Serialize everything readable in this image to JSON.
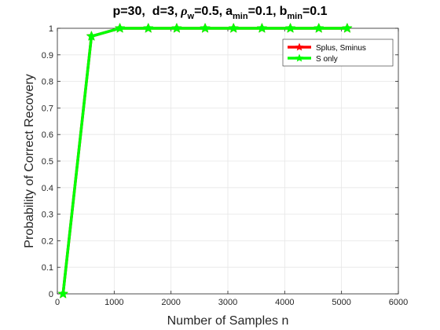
{
  "chart_data": {
    "type": "line",
    "title_parts": {
      "p": "p=30,",
      "d": "d=3,",
      "rho": "ρ",
      "rho_sub": "w",
      "rho_val": "=0.5,",
      "a": "a",
      "a_sub": "min",
      "a_val": "=0.1,",
      "b": "b",
      "b_sub": "min",
      "b_val": "=0.1"
    },
    "xlabel": "Number of Samples n",
    "ylabel": "Probability of Correct Recovery",
    "xlim": [
      0,
      6000
    ],
    "ylim": [
      0,
      1
    ],
    "xticks": [
      0,
      1000,
      2000,
      3000,
      4000,
      5000,
      6000
    ],
    "yticks": [
      0,
      0.1,
      0.2,
      0.3,
      0.4,
      0.5,
      0.6,
      0.7,
      0.8,
      0.9,
      1
    ],
    "ytick_labels": [
      "0",
      "0.1",
      "0.2",
      "0.3",
      "0.4",
      "0.5",
      "0.6",
      "0.7",
      "0.8",
      "0.9",
      "1"
    ],
    "legend_position": "top-right",
    "series": [
      {
        "name": "Splus, Sminus",
        "color": "#ff0000",
        "marker": "pentagram",
        "x": [
          100,
          600,
          1100,
          1600,
          2100,
          2600,
          3100,
          3600,
          4100,
          4600,
          5100
        ],
        "y": [
          0,
          0.97,
          1,
          1,
          1,
          1,
          1,
          1,
          1,
          1,
          1
        ]
      },
      {
        "name": "S only",
        "color": "#00ff00",
        "marker": "pentagram",
        "x": [
          100,
          600,
          1100,
          1600,
          2100,
          2600,
          3100,
          3600,
          4100,
          4600,
          5100
        ],
        "y": [
          0,
          0.97,
          1,
          1,
          1,
          1,
          1,
          1,
          1,
          1,
          1
        ]
      }
    ]
  }
}
